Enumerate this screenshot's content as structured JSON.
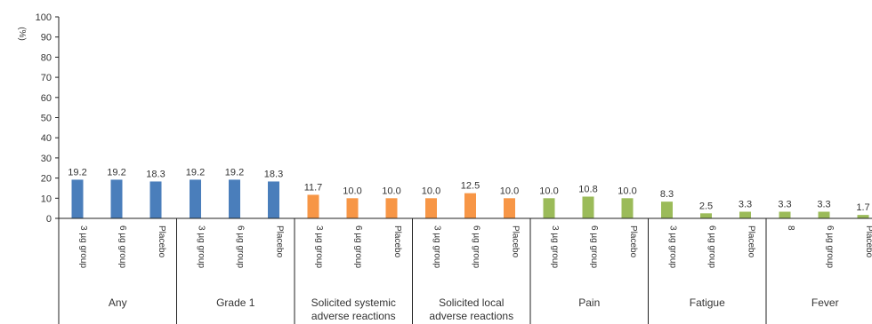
{
  "chart_data": {
    "type": "bar",
    "ylabel": "(%)",
    "ylim": [
      0,
      100
    ],
    "yticks": [
      0,
      10,
      20,
      30,
      40,
      50,
      60,
      70,
      80,
      90,
      100
    ],
    "grid": false,
    "colors": {
      "blue": "#4a7ebb",
      "orange": "#f79646",
      "green": "#9bbb59"
    },
    "groups": [
      {
        "label": "Any",
        "color": "blue",
        "bars": [
          {
            "category": "3 µg group",
            "value": 19.2,
            "label": "19.2"
          },
          {
            "category": "6 µg group",
            "value": 19.2,
            "label": "19.2"
          },
          {
            "category": "Placebo",
            "value": 18.3,
            "label": "18.3"
          }
        ]
      },
      {
        "label": "Grade 1",
        "color": "blue",
        "bars": [
          {
            "category": "3 µg group",
            "value": 19.2,
            "label": "19.2"
          },
          {
            "category": "6 µg group",
            "value": 19.2,
            "label": "19.2"
          },
          {
            "category": "Placebo",
            "value": 18.3,
            "label": "18.3"
          }
        ]
      },
      {
        "label": "Solicited systemic adverse reactions",
        "label_lines": [
          "Solicited systemic",
          "adverse reactions"
        ],
        "color": "orange",
        "bars": [
          {
            "category": "3 µg group",
            "value": 11.7,
            "label": "11.7"
          },
          {
            "category": "6 µg group",
            "value": 10.0,
            "label": "10.0"
          },
          {
            "category": "Placebo",
            "value": 10.0,
            "label": "10.0"
          }
        ]
      },
      {
        "label": "Solicited local adverse reactions",
        "label_lines": [
          "Solicited local",
          "adverse reactions"
        ],
        "color": "orange",
        "bars": [
          {
            "category": "3 µg group",
            "value": 10.0,
            "label": "10.0"
          },
          {
            "category": "6 µg group",
            "value": 12.5,
            "label": "12.5"
          },
          {
            "category": "Placebo",
            "value": 10.0,
            "label": "10.0"
          }
        ]
      },
      {
        "label": "Pain",
        "color": "green",
        "bars": [
          {
            "category": "3 µg group",
            "value": 10.0,
            "label": "10.0"
          },
          {
            "category": "6 µg group",
            "value": 10.8,
            "label": "10.8"
          },
          {
            "category": "Placebo",
            "value": 10.0,
            "label": "10.0"
          }
        ]
      },
      {
        "label": "Fatigue",
        "color": "green",
        "bars": [
          {
            "category": "3 µg group",
            "value": 8.3,
            "label": "8.3"
          },
          {
            "category": "6 µg group",
            "value": 2.5,
            "label": "2.5"
          },
          {
            "category": "Placebo",
            "value": 3.3,
            "label": "3.3"
          }
        ]
      },
      {
        "label": "Fever",
        "color": "green",
        "bars": [
          {
            "category": "8",
            "value": 3.3,
            "label": "3.3"
          },
          {
            "category": "6 µg group",
            "value": 3.3,
            "label": "3.3"
          },
          {
            "category": "Placebo",
            "value": 1.7,
            "label": "1.7"
          }
        ]
      }
    ]
  }
}
